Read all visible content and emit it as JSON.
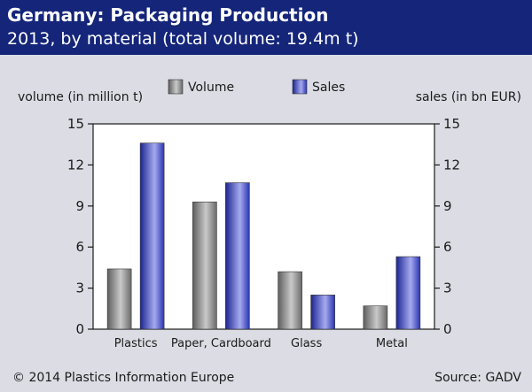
{
  "header": {
    "title": "Germany: Packaging Production",
    "subtitle": "2013, by material (total volume: 19.4m t)"
  },
  "footer": {
    "copyright": "© 2014 Plastics Information Europe",
    "source": "Source: GADV"
  },
  "colors": {
    "header_bg": "#14257a",
    "background": "#dcdde4",
    "volume_bar": "#8a8a8a",
    "sales_bar": "#2d38b0"
  },
  "chart_data": {
    "type": "bar",
    "categories": [
      "Plastics",
      "Paper, Cardboard",
      "Glass",
      "Metal"
    ],
    "series": [
      {
        "name": "Volume",
        "axis": "left",
        "values": [
          4.4,
          9.3,
          4.2,
          1.7
        ]
      },
      {
        "name": "Sales",
        "axis": "right",
        "values": [
          13.6,
          10.7,
          2.5,
          5.3
        ]
      }
    ],
    "ylabel_left": "volume (in million t)",
    "ylabel_right": "sales (in bn EUR)",
    "ylim_left": [
      0,
      15
    ],
    "ylim_right": [
      0,
      15
    ],
    "yticks": [
      0,
      3,
      6,
      9,
      12,
      15
    ],
    "legend_position": "top-center",
    "grid": false
  }
}
